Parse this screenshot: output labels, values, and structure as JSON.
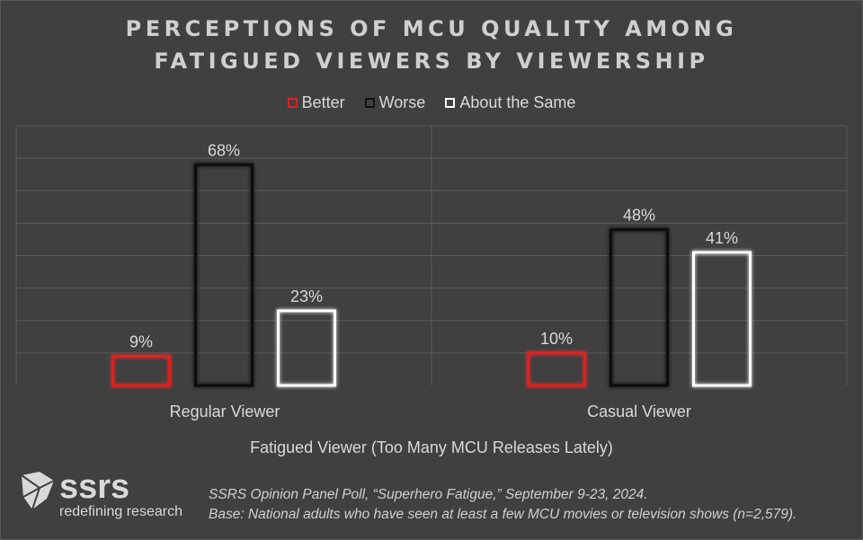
{
  "title_line1": "PERCEPTIONS OF MCU QUALITY AMONG",
  "title_line2": "FATIGUED VIEWERS BY VIEWERSHIP",
  "legend": [
    {
      "label": "Better",
      "color": "#e02020"
    },
    {
      "label": "Worse",
      "color": "#141414"
    },
    {
      "label": "About the Same",
      "color": "#ffffff"
    }
  ],
  "chart_data": {
    "type": "bar",
    "categories": [
      "Regular Viewer",
      "Casual Viewer"
    ],
    "series": [
      {
        "name": "Better",
        "values": [
          9,
          10
        ],
        "labels": [
          "9%",
          "10%"
        ],
        "color": "#e02020"
      },
      {
        "name": "Worse",
        "values": [
          68,
          48
        ],
        "labels": [
          "68%",
          "48%"
        ],
        "color": "#141414"
      },
      {
        "name": "About the Same",
        "values": [
          23,
          41
        ],
        "labels": [
          "23%",
          "41%"
        ],
        "color": "#ffffff"
      }
    ],
    "xlabel": "Fatigued Viewer (Too Many MCU Releases Lately)",
    "ylabel": "",
    "ylim": [
      0,
      80
    ],
    "grid": true,
    "legend_position": "top"
  },
  "logo": {
    "word": "ssrs",
    "tagline": "redefining research"
  },
  "source_line1": "SSRS Opinion Panel Poll, “Superhero Fatigue,” September 9-23, 2024.",
  "source_line2": "Base: National adults who have seen at least a few MCU movies or television shows (n=2,579)."
}
